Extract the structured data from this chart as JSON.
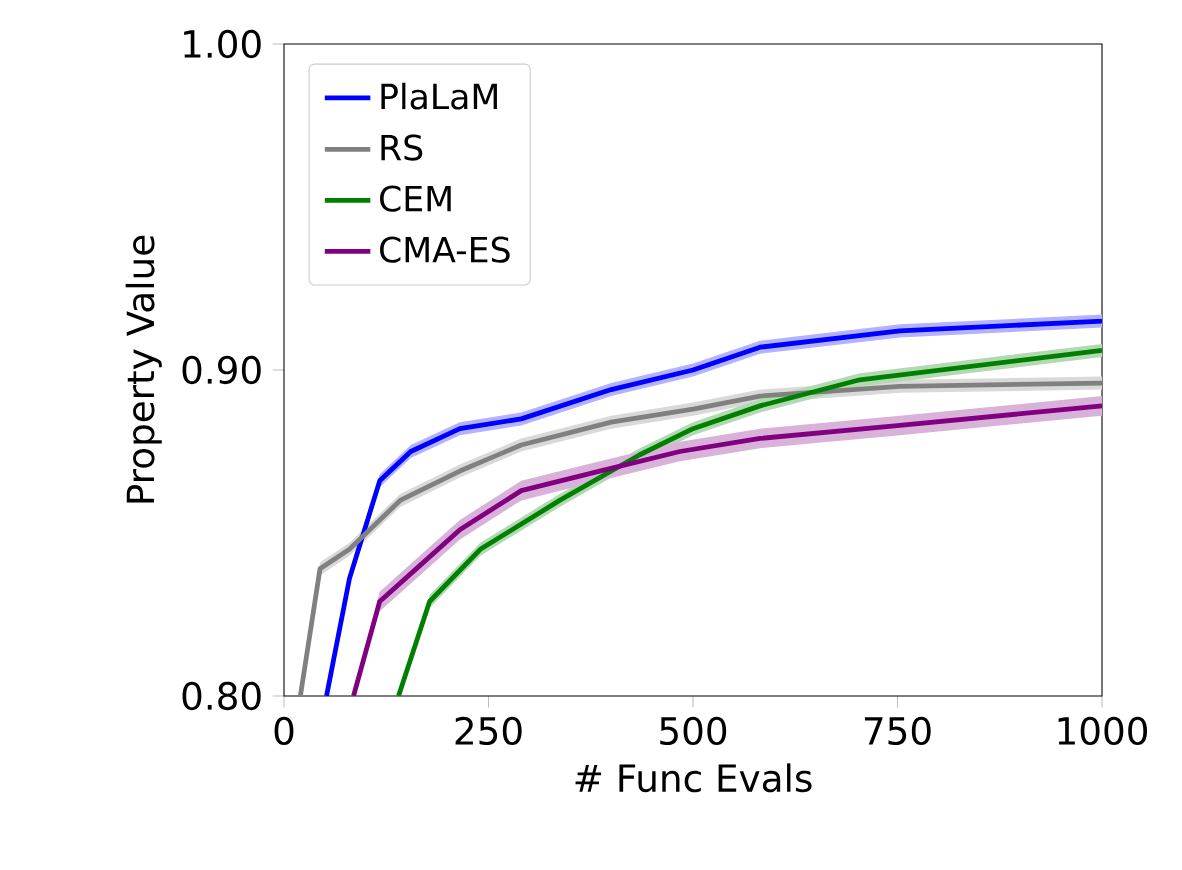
{
  "chart_data": {
    "type": "line",
    "xlabel": "# Func Evals",
    "ylabel": "Property Value",
    "xlim": [
      0,
      1000
    ],
    "ylim": [
      0.8,
      1.0
    ],
    "xticks": [
      0,
      250,
      500,
      750,
      1000
    ],
    "yticks": [
      {
        "value": 0.8,
        "label": "0.80"
      },
      {
        "value": 0.9,
        "label": "0.90"
      },
      {
        "value": 1.0,
        "label": "1.00"
      }
    ],
    "legend": "top left",
    "grid": false,
    "series": [
      {
        "name": "PlaLaM",
        "color": "#0000ff",
        "x": [
          52,
          80,
          117,
          155,
          215,
          290,
          400,
          500,
          582,
          753,
          1000
        ],
        "values": [
          0.8,
          0.836,
          0.866,
          0.875,
          0.882,
          0.885,
          0.894,
          0.9,
          0.907,
          0.912,
          0.915
        ],
        "lower": [
          0.8,
          0.834,
          0.864,
          0.873,
          0.88,
          0.883,
          0.892,
          0.898,
          0.905,
          0.91,
          0.913
        ],
        "upper": [
          0.8,
          0.838,
          0.868,
          0.877,
          0.884,
          0.887,
          0.896,
          0.902,
          0.909,
          0.914,
          0.917
        ]
      },
      {
        "name": "RS",
        "color": "#808080",
        "x": [
          20,
          44,
          80,
          142,
          215,
          290,
          400,
          500,
          582,
          753,
          1000
        ],
        "values": [
          0.8,
          0.839,
          0.845,
          0.86,
          0.869,
          0.877,
          0.884,
          0.888,
          0.892,
          0.895,
          0.896
        ],
        "lower": [
          0.8,
          0.837,
          0.843,
          0.858,
          0.867,
          0.875,
          0.882,
          0.886,
          0.89,
          0.893,
          0.894
        ],
        "upper": [
          0.8,
          0.841,
          0.847,
          0.862,
          0.871,
          0.879,
          0.886,
          0.89,
          0.894,
          0.897,
          0.898
        ]
      },
      {
        "name": "CEM",
        "color": "#008000",
        "x": [
          140,
          178,
          240,
          337,
          435,
          500,
          582,
          704,
          1000
        ],
        "values": [
          0.8,
          0.829,
          0.845,
          0.86,
          0.874,
          0.882,
          0.889,
          0.897,
          0.906
        ],
        "lower": [
          0.8,
          0.827,
          0.843,
          0.858,
          0.872,
          0.88,
          0.887,
          0.895,
          0.904
        ],
        "upper": [
          0.8,
          0.831,
          0.847,
          0.862,
          0.876,
          0.884,
          0.891,
          0.899,
          0.908
        ]
      },
      {
        "name": "CMA-ES",
        "color": "#800080",
        "x": [
          85,
          117,
          166,
          215,
          290,
          386,
          484,
          582,
          753,
          1000
        ],
        "values": [
          0.8,
          0.829,
          0.84,
          0.851,
          0.863,
          0.869,
          0.875,
          0.879,
          0.883,
          0.889
        ],
        "lower": [
          0.8,
          0.826,
          0.837,
          0.848,
          0.86,
          0.866,
          0.872,
          0.876,
          0.88,
          0.886
        ],
        "upper": [
          0.8,
          0.832,
          0.843,
          0.854,
          0.866,
          0.872,
          0.878,
          0.882,
          0.886,
          0.892
        ]
      }
    ]
  }
}
